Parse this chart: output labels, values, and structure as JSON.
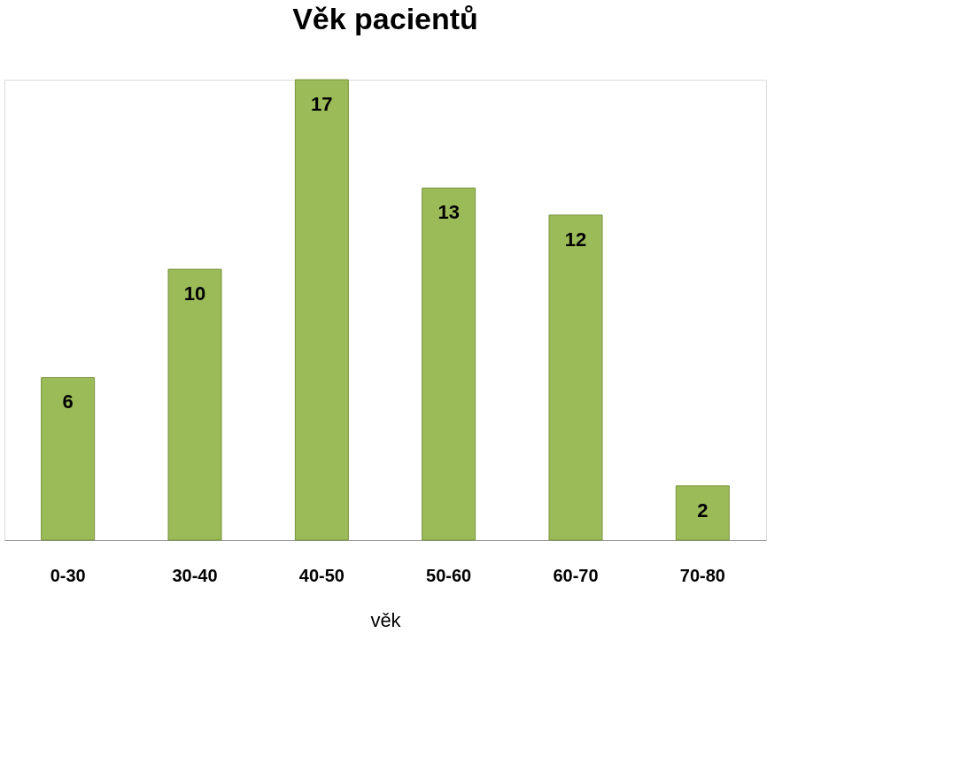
{
  "chart_data": {
    "type": "bar",
    "title": "Věk pacientů",
    "xlabel": "věk",
    "categories": [
      "0-30",
      "30-40",
      "40-50",
      "50-60",
      "60-70",
      "70-80"
    ],
    "values": [
      6,
      10,
      17,
      13,
      12,
      2
    ],
    "color": "#9bbb59",
    "data_labels": true,
    "grid": false
  }
}
